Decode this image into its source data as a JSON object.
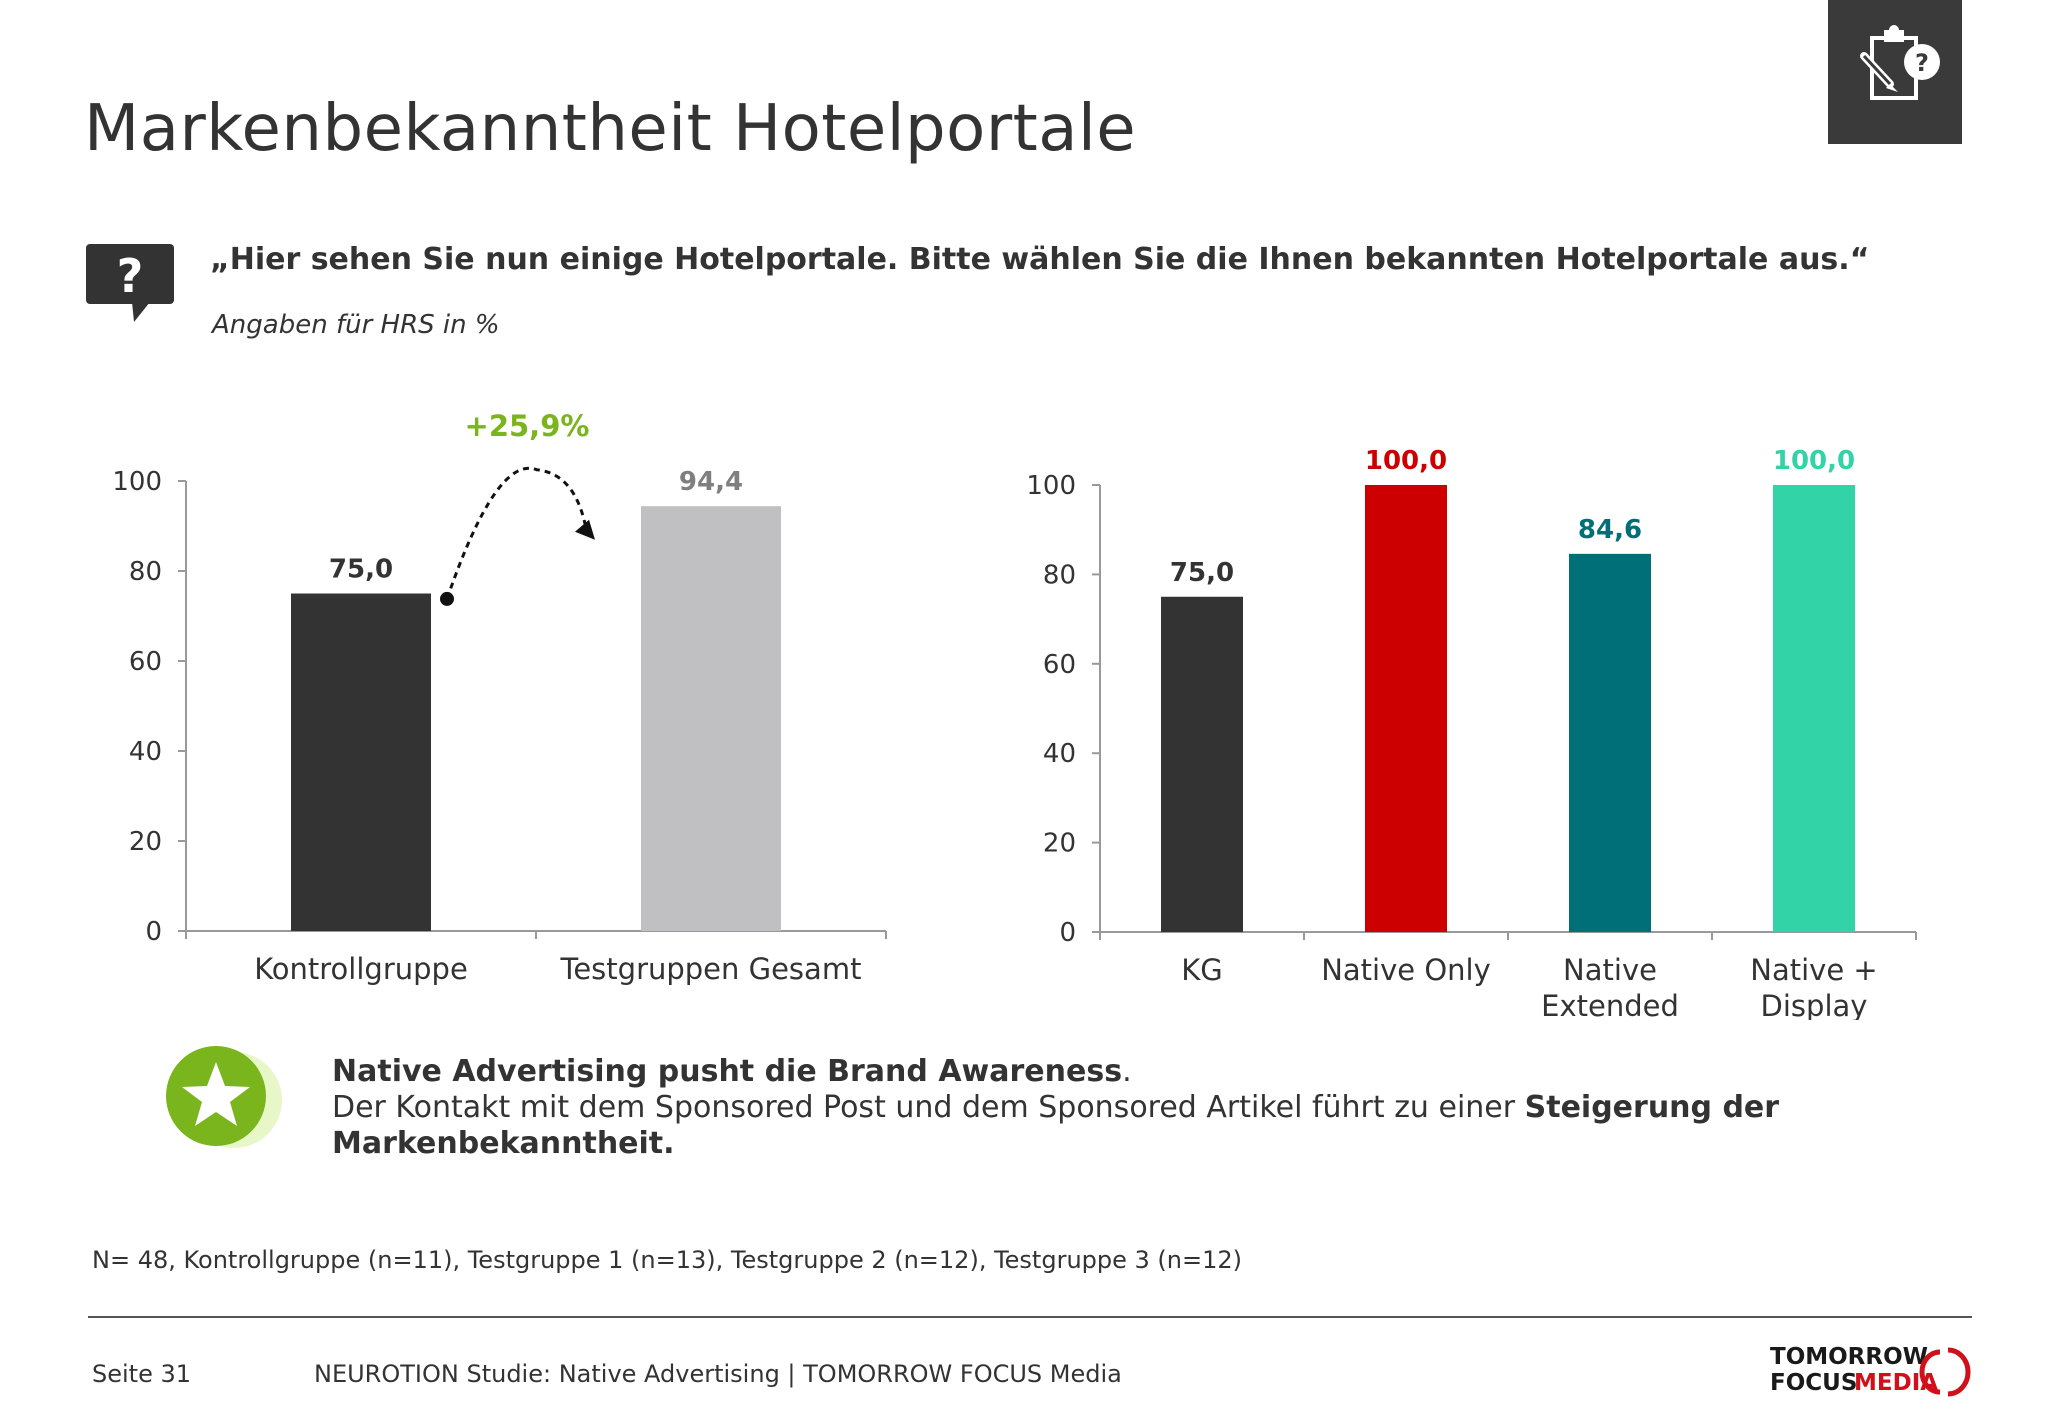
{
  "page": {
    "title": "Markenbekanntheit Hotelportale",
    "question": "„Hier sehen Sie nun einige Hotelportale. Bitte wählen Sie die Ihnen bekannten Hotelportale aus.“",
    "question_sub": "Angaben für HRS in %",
    "insight": {
      "headline": "Native Advertising pusht die Brand Awareness",
      "headline_suffix": ".",
      "body": "Der Kontakt mit dem Sponsored Post und dem Sponsored Artikel führt zu einer ",
      "body_bold": "Steigerung der Markenbekanntheit."
    },
    "sample_note": "N= 48, Kontrollgruppe (n=11), Testgruppe 1 (n=13), Testgruppe 2 (n=12), Testgruppe 3 (n=12)",
    "footer": {
      "page_number": "Seite 31",
      "source": "NEUROTION Studie: Native Advertising | TOMORROW FOCUS Media",
      "logo_line1": "TOMORROW",
      "logo_line2a": "FOCUS",
      "logo_line2b": "MEDIA"
    },
    "icons": [
      "clipboard-question-icon",
      "question-speech-bubble-icon",
      "star-badge-icon",
      "curved-arrow-icon"
    ],
    "colors": {
      "accent_green": "#7ab51d",
      "dark_grey": "#333333",
      "light_grey": "#c0bfc1",
      "red": "#cc0000",
      "teal": "#006f78",
      "mint": "#33d3a8",
      "logo_red": "#d0111b"
    }
  },
  "chart_data": [
    {
      "type": "bar",
      "categories": [
        "Kontrollgruppe",
        "Testgruppen Gesamt"
      ],
      "values": [
        75.0,
        94.4
      ],
      "value_labels": [
        "75,0",
        "94,4"
      ],
      "colors": [
        "#333333",
        "#c0bfc1"
      ],
      "label_colors": [
        "#333333",
        "#7f7f7f"
      ],
      "yticks": [
        0,
        20,
        40,
        60,
        80,
        100
      ],
      "ylim": [
        0,
        100
      ],
      "annotation": "+25,9%",
      "annotation_color": "#7ab51d",
      "grid": false
    },
    {
      "type": "bar",
      "categories": [
        [
          "KG"
        ],
        [
          "Native Only"
        ],
        [
          "Native",
          "Extended"
        ],
        [
          "Native +",
          "Display"
        ]
      ],
      "values": [
        75.0,
        100.0,
        84.6,
        100.0
      ],
      "value_labels": [
        "75,0",
        "100,0",
        "84,6",
        "100,0"
      ],
      "colors": [
        "#333333",
        "#cc0000",
        "#006f78",
        "#33d3a8"
      ],
      "label_colors": [
        "#333333",
        "#cc0000",
        "#006f78",
        "#33d3a8"
      ],
      "yticks": [
        0,
        20,
        40,
        60,
        80,
        100
      ],
      "ylim": [
        0,
        100
      ],
      "grid": false
    }
  ]
}
